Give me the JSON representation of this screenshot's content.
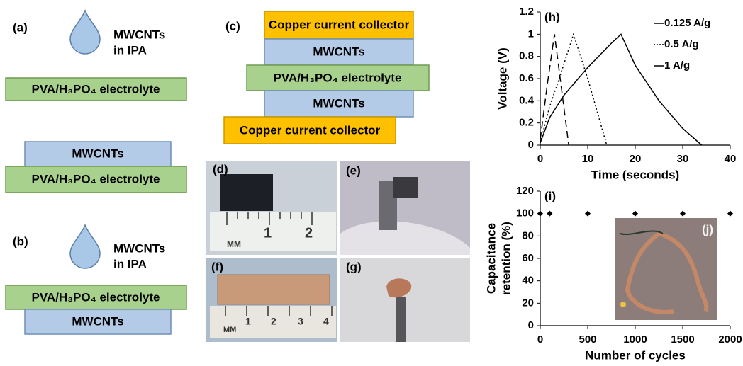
{
  "panel_a": {
    "label": "(a)",
    "drop_text": [
      "MWCNTs",
      "in IPA"
    ],
    "step1": [
      "PVA/H₃PO₄ electrolyte"
    ],
    "step2": [
      "MWCNTs",
      "PVA/H₃PO₄ electrolyte"
    ]
  },
  "panel_b": {
    "label": "(b)",
    "drop_text": [
      "MWCNTs",
      "in IPA"
    ],
    "layers": [
      "PVA/H₃PO₄ electrolyte",
      "MWCNTs"
    ]
  },
  "panel_c": {
    "label": "(c)",
    "layers": [
      "Copper current collector",
      "MWCNTs",
      "PVA/H₃PO₄ electrolyte",
      "MWCNTs",
      "Copper current collector"
    ]
  },
  "photos": {
    "d": {
      "label": "(d)",
      "ruler": [
        "MM",
        "1",
        "2"
      ]
    },
    "e": {
      "label": "(e)"
    },
    "f": {
      "label": "(f)",
      "ruler": [
        "MM",
        "1",
        "2",
        "3",
        "4"
      ]
    },
    "g": {
      "label": "(g)"
    },
    "j": {
      "label": "(j)"
    }
  },
  "chart_data": [
    {
      "type": "line",
      "annotation": "(h)",
      "xlabel": "Time (seconds)",
      "ylabel": "Voltage (V)",
      "xlim": [
        0,
        40
      ],
      "xticks": [
        0,
        10,
        20,
        30,
        40
      ],
      "ylim": [
        0,
        1.2
      ],
      "yticks": [
        0,
        0.2,
        0.4,
        0.6,
        0.8,
        1,
        1.2
      ],
      "series": [
        {
          "name": "0.125 A/g",
          "color": "#000000",
          "dash": "solid",
          "x": [
            0,
            2,
            5,
            10,
            15,
            17,
            20,
            25,
            30,
            34
          ],
          "values": [
            0.02,
            0.25,
            0.45,
            0.7,
            0.92,
            1,
            0.72,
            0.4,
            0.15,
            0
          ]
        },
        {
          "name": "0.5 A/g",
          "color": "#000000",
          "dash": "dotted",
          "x": [
            0,
            2,
            4,
            7,
            10,
            12,
            14
          ],
          "values": [
            0.02,
            0.35,
            0.6,
            1,
            0.6,
            0.3,
            0
          ]
        },
        {
          "name": "1 A/g",
          "color": "#000000",
          "dash": "dashed",
          "x": [
            0,
            1.5,
            3,
            4.5,
            6
          ],
          "values": [
            0.05,
            0.55,
            1,
            0.5,
            0
          ]
        }
      ]
    },
    {
      "type": "scatter",
      "annotation": "(i)",
      "xlabel": "Number of cycles",
      "ylabel": [
        "Capacitance",
        "retention (%)"
      ],
      "xlim": [
        0,
        2000
      ],
      "xticks": [
        0,
        500,
        1000,
        1500,
        2000
      ],
      "ylim": [
        0,
        120
      ],
      "yticks": [
        0,
        20,
        40,
        60,
        80,
        100,
        120
      ],
      "color": "#000000",
      "x": [
        0,
        100,
        500,
        1000,
        1500,
        2000
      ],
      "values": [
        100,
        100,
        100,
        100,
        100,
        100
      ]
    }
  ]
}
